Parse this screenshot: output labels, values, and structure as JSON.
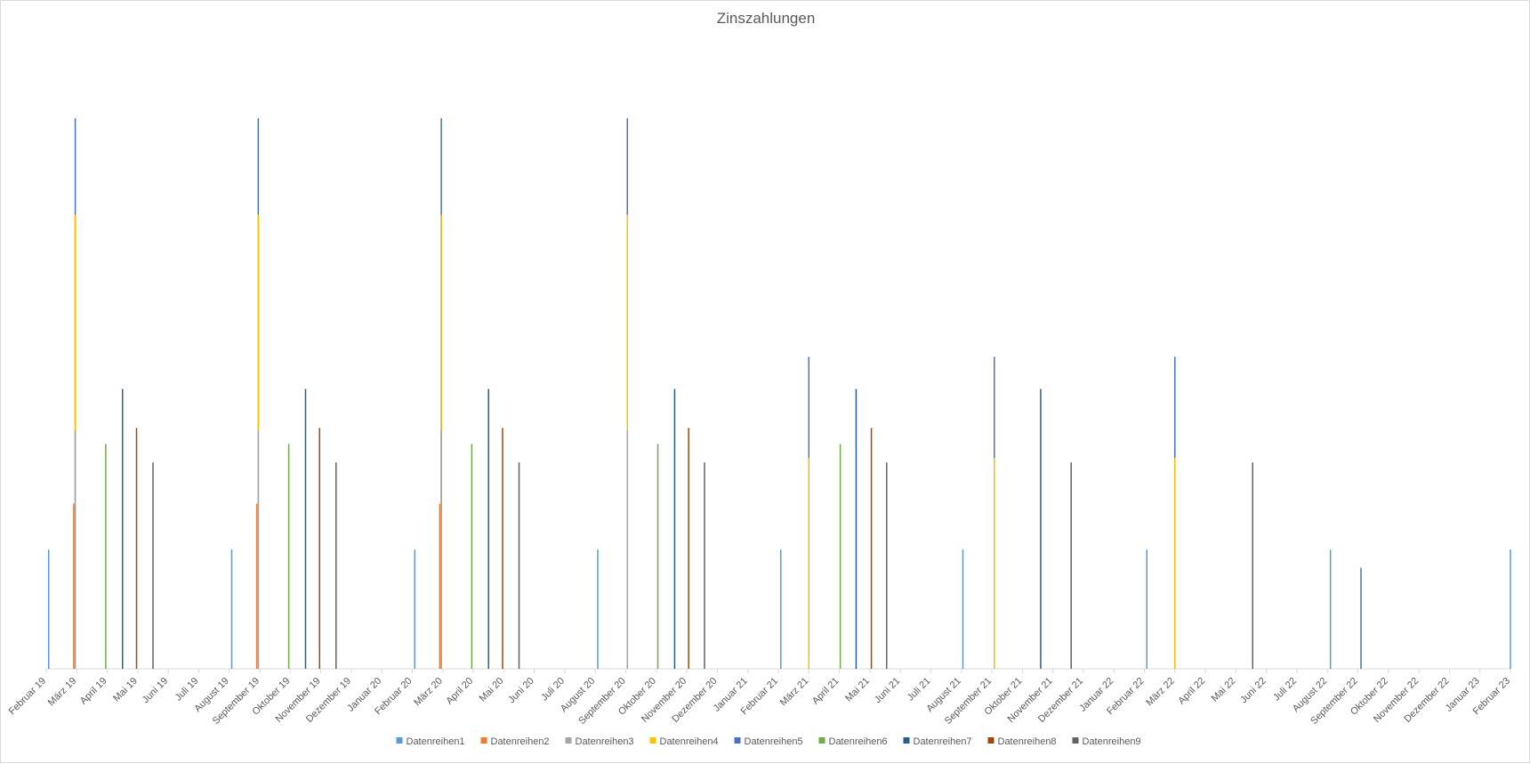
{
  "chart_data": {
    "type": "bar",
    "title": "Zinszahlungen",
    "xlabel": "",
    "ylabel": "",
    "ylim": [
      0,
      12
    ],
    "grid": false,
    "legend_position": "bottom",
    "categories": [
      "Februar 19",
      "März 19",
      "April 19",
      "Mai 19",
      "Juni 19",
      "Juli 19",
      "August 19",
      "September 19",
      "Oktober 19",
      "November 19",
      "Dezember 19",
      "Januar 20",
      "Februar 20",
      "März 20",
      "April 20",
      "Mai 20",
      "Juni 20",
      "Juli 20",
      "August 20",
      "September 20",
      "Oktober 20",
      "November 20",
      "Dezember 20",
      "Januar 21",
      "Februar 21",
      "März 21",
      "April 21",
      "Mai 21",
      "Juni 21",
      "Juli 21",
      "August 21",
      "September 21",
      "Oktober 21",
      "November 21",
      "Dezember 21",
      "Januar 22",
      "Februar 22",
      "März 22",
      "April 22",
      "Mai 22",
      "Juni 22",
      "Juli 22",
      "August 22",
      "September 22",
      "Oktober 22",
      "November 22",
      "Dezember 22",
      "Januar 23",
      "Februar 23"
    ],
    "series": [
      {
        "name": "Datenreihen1",
        "color": "#5b9bd5"
      },
      {
        "name": "Datenreihen2",
        "color": "#ed7d31"
      },
      {
        "name": "Datenreihen3",
        "color": "#a5a5a5"
      },
      {
        "name": "Datenreihen4",
        "color": "#ffc000"
      },
      {
        "name": "Datenreihen5",
        "color": "#4472c4"
      },
      {
        "name": "Datenreihen6",
        "color": "#70ad47"
      },
      {
        "name": "Datenreihen7",
        "color": "#255e91"
      },
      {
        "name": "Datenreihen8",
        "color": "#9e480e"
      },
      {
        "name": "Datenreihen9",
        "color": "#636363"
      }
    ],
    "points": [
      {
        "series": 0,
        "x": 0.08,
        "y": 2.6
      },
      {
        "series": 1,
        "x": 0.9,
        "y": 3.6
      },
      {
        "series": 2,
        "x": 0.95,
        "y": 5.2
      },
      {
        "series": 3,
        "x": 0.95,
        "y": 9.9
      },
      {
        "series": 4,
        "x": 0.95,
        "y": 12.0
      },
      {
        "series": 5,
        "x": 1.95,
        "y": 4.9
      },
      {
        "series": 6,
        "x": 2.5,
        "y": 6.1
      },
      {
        "series": 7,
        "x": 2.96,
        "y": 5.25
      },
      {
        "series": 8,
        "x": 3.5,
        "y": 4.5
      },
      {
        "series": 0,
        "x": 6.08,
        "y": 2.6
      },
      {
        "series": 1,
        "x": 6.9,
        "y": 3.6
      },
      {
        "series": 2,
        "x": 6.95,
        "y": 5.2
      },
      {
        "series": 3,
        "x": 6.95,
        "y": 9.9
      },
      {
        "series": 4,
        "x": 6.95,
        "y": 12.0
      },
      {
        "series": 5,
        "x": 7.95,
        "y": 4.9
      },
      {
        "series": 6,
        "x": 8.5,
        "y": 6.1
      },
      {
        "series": 7,
        "x": 8.96,
        "y": 5.25
      },
      {
        "series": 8,
        "x": 9.5,
        "y": 4.5
      },
      {
        "series": 0,
        "x": 12.08,
        "y": 2.6
      },
      {
        "series": 1,
        "x": 12.9,
        "y": 3.6
      },
      {
        "series": 2,
        "x": 12.95,
        "y": 5.2
      },
      {
        "series": 3,
        "x": 12.95,
        "y": 9.9
      },
      {
        "series": 4,
        "x": 12.95,
        "y": 12.0
      },
      {
        "series": 5,
        "x": 13.95,
        "y": 4.9
      },
      {
        "series": 6,
        "x": 14.5,
        "y": 6.1
      },
      {
        "series": 7,
        "x": 14.96,
        "y": 5.25
      },
      {
        "series": 8,
        "x": 15.5,
        "y": 4.5
      },
      {
        "series": 0,
        "x": 18.08,
        "y": 2.6
      },
      {
        "series": 2,
        "x": 19.05,
        "y": 5.2
      },
      {
        "series": 3,
        "x": 19.05,
        "y": 9.9
      },
      {
        "series": 4,
        "x": 19.05,
        "y": 12.0
      },
      {
        "series": 5,
        "x": 20.05,
        "y": 4.9
      },
      {
        "series": 6,
        "x": 20.6,
        "y": 6.1
      },
      {
        "series": 7,
        "x": 21.06,
        "y": 5.25
      },
      {
        "series": 8,
        "x": 21.58,
        "y": 4.5
      },
      {
        "series": 0,
        "x": 24.08,
        "y": 2.6
      },
      {
        "series": 3,
        "x": 25.0,
        "y": 4.6
      },
      {
        "series": 4,
        "x": 25.0,
        "y": 6.8
      },
      {
        "series": 5,
        "x": 26.03,
        "y": 4.9
      },
      {
        "series": 6,
        "x": 26.55,
        "y": 6.1
      },
      {
        "series": 7,
        "x": 27.05,
        "y": 5.25
      },
      {
        "series": 8,
        "x": 27.55,
        "y": 4.5
      },
      {
        "series": 0,
        "x": 30.05,
        "y": 2.6
      },
      {
        "series": 3,
        "x": 31.08,
        "y": 4.6
      },
      {
        "series": 4,
        "x": 31.08,
        "y": 6.8
      },
      {
        "series": 6,
        "x": 32.6,
        "y": 6.1
      },
      {
        "series": 8,
        "x": 33.6,
        "y": 4.5
      },
      {
        "series": 0,
        "x": 36.08,
        "y": 2.6
      },
      {
        "series": 3,
        "x": 37.0,
        "y": 4.6
      },
      {
        "series": 4,
        "x": 37.0,
        "y": 6.8
      },
      {
        "series": 8,
        "x": 39.55,
        "y": 4.5
      },
      {
        "series": 0,
        "x": 42.1,
        "y": 2.6
      },
      {
        "series": 4,
        "x": 43.1,
        "y": 2.2
      },
      {
        "series": 0,
        "x": 48.0,
        "y": 2.6
      }
    ]
  }
}
